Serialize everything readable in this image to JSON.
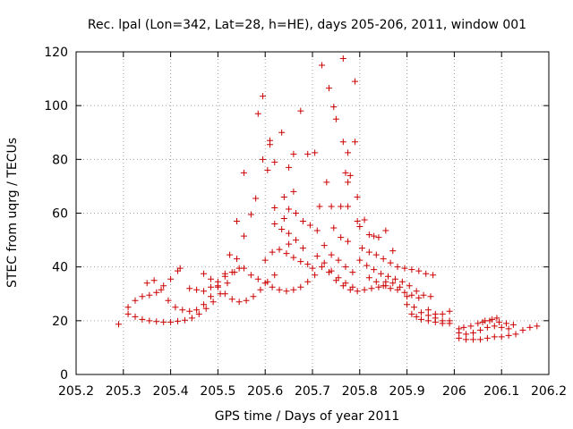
{
  "chart_data": {
    "type": "scatter",
    "title": "Rec. lpal (Lon=342, Lat=28, h=HE), days 205-206, 2011, window 001",
    "xlabel": "GPS time / Days of year 2011",
    "ylabel": "STEC from uqrg / TECUs",
    "xlim": [
      205.2,
      206.2
    ],
    "ylim": [
      0,
      120
    ],
    "xticks": [
      "205.2",
      "205.3",
      "205.4",
      "205.5",
      "205.6",
      "205.7",
      "205.8",
      "205.9",
      "206",
      "206.1",
      "206.2"
    ],
    "yticks": [
      "0",
      "20",
      "40",
      "60",
      "80",
      "100",
      "120"
    ],
    "grid": true,
    "marker": "+",
    "color": "#cc0000",
    "series": [
      {
        "name": "STEC",
        "points": [
          [
            205.29,
            18.7
          ],
          [
            205.31,
            22.5
          ],
          [
            205.325,
            21.5
          ],
          [
            205.34,
            20.5
          ],
          [
            205.355,
            20.0
          ],
          [
            205.37,
            19.7
          ],
          [
            205.385,
            19.5
          ],
          [
            205.4,
            19.5
          ],
          [
            205.415,
            19.8
          ],
          [
            205.43,
            20.2
          ],
          [
            205.445,
            21.0
          ],
          [
            205.46,
            22.5
          ],
          [
            205.475,
            24.5
          ],
          [
            205.49,
            27.0
          ],
          [
            205.505,
            30.0
          ],
          [
            205.52,
            34.0
          ],
          [
            205.535,
            38.0
          ],
          [
            205.31,
            25.0
          ],
          [
            205.325,
            27.5
          ],
          [
            205.34,
            29.0
          ],
          [
            205.355,
            29.5
          ],
          [
            205.37,
            30.5
          ],
          [
            205.385,
            33.0
          ],
          [
            205.4,
            35.5
          ],
          [
            205.415,
            38.5
          ],
          [
            205.42,
            39.5
          ],
          [
            205.35,
            34.0
          ],
          [
            205.365,
            35.0
          ],
          [
            205.38,
            31.5
          ],
          [
            205.395,
            27.5
          ],
          [
            205.41,
            25.0
          ],
          [
            205.425,
            24.0
          ],
          [
            205.44,
            23.5
          ],
          [
            205.455,
            24.0
          ],
          [
            205.47,
            26.0
          ],
          [
            205.485,
            29.0
          ],
          [
            205.5,
            32.5
          ],
          [
            205.515,
            37.5
          ],
          [
            205.44,
            32.0
          ],
          [
            205.455,
            31.5
          ],
          [
            205.47,
            31.0
          ],
          [
            205.485,
            32.5
          ],
          [
            205.5,
            34.5
          ],
          [
            205.515,
            36.5
          ],
          [
            205.53,
            38.0
          ],
          [
            205.545,
            39.5
          ],
          [
            205.47,
            37.5
          ],
          [
            205.485,
            35.5
          ],
          [
            205.5,
            33.0
          ],
          [
            205.515,
            30.0
          ],
          [
            205.53,
            28.0
          ],
          [
            205.545,
            27.0
          ],
          [
            205.56,
            27.5
          ],
          [
            205.575,
            29.0
          ],
          [
            205.59,
            31.5
          ],
          [
            205.605,
            34.5
          ],
          [
            205.62,
            37.0
          ],
          [
            205.525,
            44.5
          ],
          [
            205.54,
            43.0
          ],
          [
            205.555,
            39.5
          ],
          [
            205.57,
            37.0
          ],
          [
            205.585,
            35.5
          ],
          [
            205.6,
            34.0
          ],
          [
            205.615,
            32.5
          ],
          [
            205.63,
            31.5
          ],
          [
            205.645,
            31.0
          ],
          [
            205.66,
            31.5
          ],
          [
            205.675,
            32.5
          ],
          [
            205.69,
            34.5
          ],
          [
            205.705,
            37.0
          ],
          [
            205.72,
            40.0
          ],
          [
            205.735,
            38.0
          ],
          [
            205.75,
            35.0
          ],
          [
            205.765,
            33.0
          ],
          [
            205.78,
            31.5
          ],
          [
            205.795,
            31.0
          ],
          [
            205.81,
            31.5
          ],
          [
            205.825,
            32.0
          ],
          [
            205.84,
            32.5
          ],
          [
            205.855,
            33.0
          ],
          [
            205.54,
            57.0
          ],
          [
            205.555,
            51.5
          ],
          [
            205.57,
            59.5
          ],
          [
            205.58,
            65.5
          ],
          [
            205.555,
            75.0
          ],
          [
            205.585,
            97.0
          ],
          [
            205.595,
            103.5
          ],
          [
            205.61,
            87.0
          ],
          [
            205.61,
            85.5
          ],
          [
            205.595,
            80.0
          ],
          [
            205.605,
            76.0
          ],
          [
            205.62,
            79.0
          ],
          [
            205.635,
            90.0
          ],
          [
            205.65,
            77.0
          ],
          [
            205.66,
            82.0
          ],
          [
            205.675,
            98.0
          ],
          [
            205.69,
            82.0
          ],
          [
            205.705,
            82.5
          ],
          [
            205.72,
            115.0
          ],
          [
            205.735,
            106.5
          ],
          [
            205.745,
            99.5
          ],
          [
            205.75,
            95.0
          ],
          [
            205.765,
            117.5
          ],
          [
            205.79,
            109.0
          ],
          [
            205.765,
            86.5
          ],
          [
            205.79,
            86.5
          ],
          [
            205.775,
            82.5
          ],
          [
            205.77,
            75.0
          ],
          [
            205.78,
            74.0
          ],
          [
            205.775,
            71.5
          ],
          [
            205.795,
            66.0
          ],
          [
            205.76,
            62.5
          ],
          [
            205.775,
            62.5
          ],
          [
            205.745,
            54.5
          ],
          [
            205.76,
            51.0
          ],
          [
            205.775,
            49.5
          ],
          [
            205.64,
            66.0
          ],
          [
            205.66,
            68.0
          ],
          [
            205.62,
            62.0
          ],
          [
            205.65,
            61.5
          ],
          [
            205.665,
            60.0
          ],
          [
            205.64,
            58.0
          ],
          [
            205.62,
            56.0
          ],
          [
            205.635,
            54.0
          ],
          [
            205.65,
            52.5
          ],
          [
            205.665,
            50.0
          ],
          [
            205.68,
            47.0
          ],
          [
            205.65,
            48.5
          ],
          [
            205.68,
            57.0
          ],
          [
            205.695,
            55.5
          ],
          [
            205.71,
            53.5
          ],
          [
            205.715,
            62.5
          ],
          [
            205.73,
            71.5
          ],
          [
            205.74,
            62.5
          ],
          [
            205.725,
            48.0
          ],
          [
            205.74,
            44.5
          ],
          [
            205.755,
            42.5
          ],
          [
            205.77,
            40.0
          ],
          [
            205.785,
            38.0
          ],
          [
            205.71,
            44.0
          ],
          [
            205.725,
            41.5
          ],
          [
            205.74,
            38.5
          ],
          [
            205.755,
            36.0
          ],
          [
            205.77,
            34.0
          ],
          [
            205.785,
            32.5
          ],
          [
            205.6,
            42.5
          ],
          [
            205.615,
            45.5
          ],
          [
            205.63,
            46.5
          ],
          [
            205.645,
            45.0
          ],
          [
            205.66,
            43.5
          ],
          [
            205.675,
            42.0
          ],
          [
            205.69,
            41.0
          ],
          [
            205.7,
            39.5
          ],
          [
            205.795,
            57.0
          ],
          [
            205.8,
            55.0
          ],
          [
            205.81,
            57.5
          ],
          [
            205.82,
            52.0
          ],
          [
            205.83,
            51.5
          ],
          [
            205.84,
            51.0
          ],
          [
            205.855,
            53.5
          ],
          [
            205.87,
            46.0
          ],
          [
            205.805,
            47.0
          ],
          [
            205.82,
            45.5
          ],
          [
            205.835,
            44.5
          ],
          [
            205.85,
            43.0
          ],
          [
            205.865,
            41.5
          ],
          [
            205.88,
            40.0
          ],
          [
            205.895,
            39.5
          ],
          [
            205.91,
            39.0
          ],
          [
            205.925,
            38.5
          ],
          [
            205.94,
            37.5
          ],
          [
            205.955,
            37.0
          ],
          [
            205.8,
            42.5
          ],
          [
            205.815,
            40.5
          ],
          [
            205.83,
            39.0
          ],
          [
            205.845,
            37.5
          ],
          [
            205.86,
            36.5
          ],
          [
            205.875,
            35.5
          ],
          [
            205.89,
            34.5
          ],
          [
            205.905,
            33.0
          ],
          [
            205.92,
            31.0
          ],
          [
            205.935,
            29.5
          ],
          [
            205.95,
            29.0
          ],
          [
            205.82,
            36.0
          ],
          [
            205.835,
            34.5
          ],
          [
            205.85,
            33.0
          ],
          [
            205.865,
            32.0
          ],
          [
            205.88,
            31.5
          ],
          [
            205.895,
            30.5
          ],
          [
            205.91,
            29.5
          ],
          [
            205.925,
            28.5
          ],
          [
            205.855,
            34.5
          ],
          [
            205.87,
            34.0
          ],
          [
            205.885,
            32.5
          ],
          [
            205.9,
            29.0
          ],
          [
            205.9,
            26.0
          ],
          [
            205.91,
            22.5
          ],
          [
            205.92,
            21.5
          ],
          [
            205.93,
            20.5
          ],
          [
            205.945,
            20.0
          ],
          [
            205.96,
            19.5
          ],
          [
            205.975,
            19.0
          ],
          [
            205.99,
            19.0
          ],
          [
            205.915,
            25.0
          ],
          [
            205.93,
            23.0
          ],
          [
            205.945,
            22.0
          ],
          [
            205.96,
            21.0
          ],
          [
            205.975,
            20.0
          ],
          [
            205.99,
            20.0
          ],
          [
            205.945,
            24.0
          ],
          [
            205.96,
            22.5
          ],
          [
            205.975,
            22.5
          ],
          [
            205.99,
            23.5
          ],
          [
            206.01,
            17.0
          ],
          [
            206.02,
            17.5
          ],
          [
            206.035,
            18.0
          ],
          [
            206.05,
            19.0
          ],
          [
            206.065,
            20.0
          ],
          [
            206.08,
            20.5
          ],
          [
            206.095,
            19.5
          ],
          [
            206.11,
            19.0
          ],
          [
            206.125,
            18.5
          ],
          [
            206.01,
            15.5
          ],
          [
            206.025,
            15.0
          ],
          [
            206.04,
            15.5
          ],
          [
            206.055,
            16.5
          ],
          [
            206.07,
            17.5
          ],
          [
            206.085,
            18.0
          ],
          [
            206.1,
            17.5
          ],
          [
            206.115,
            17.0
          ],
          [
            206.01,
            13.5
          ],
          [
            206.025,
            13.0
          ],
          [
            206.04,
            13.0
          ],
          [
            206.055,
            13.0
          ],
          [
            206.07,
            13.5
          ],
          [
            206.085,
            14.0
          ],
          [
            206.1,
            14.0
          ],
          [
            206.115,
            14.5
          ],
          [
            206.13,
            15.0
          ],
          [
            206.145,
            16.5
          ],
          [
            206.16,
            17.5
          ],
          [
            206.175,
            18.0
          ],
          [
            206.06,
            19.5
          ],
          [
            206.075,
            20.0
          ],
          [
            206.09,
            21.0
          ]
        ]
      }
    ]
  }
}
